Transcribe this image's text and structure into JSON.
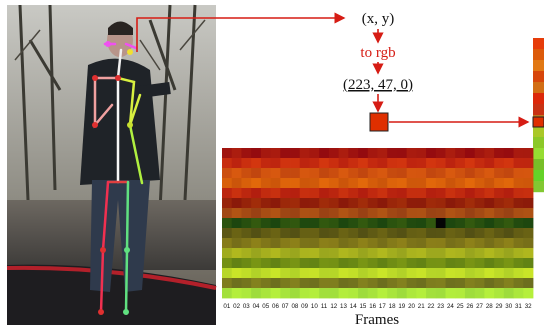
{
  "labels": {
    "point": "(x, y)",
    "conversion": "to rgb",
    "rgb": "(223, 47, 0)"
  },
  "heatmap": {
    "columns": [
      "01",
      "02",
      "03",
      "04",
      "05",
      "06",
      "07",
      "08",
      "09",
      "10",
      "11",
      "12",
      "13",
      "14",
      "15",
      "16",
      "17",
      "18",
      "19",
      "20",
      "21",
      "22",
      "23",
      "24",
      "25",
      "26",
      "27",
      "28",
      "29",
      "30",
      "31",
      "32"
    ],
    "x_label": "Frames"
  }
}
